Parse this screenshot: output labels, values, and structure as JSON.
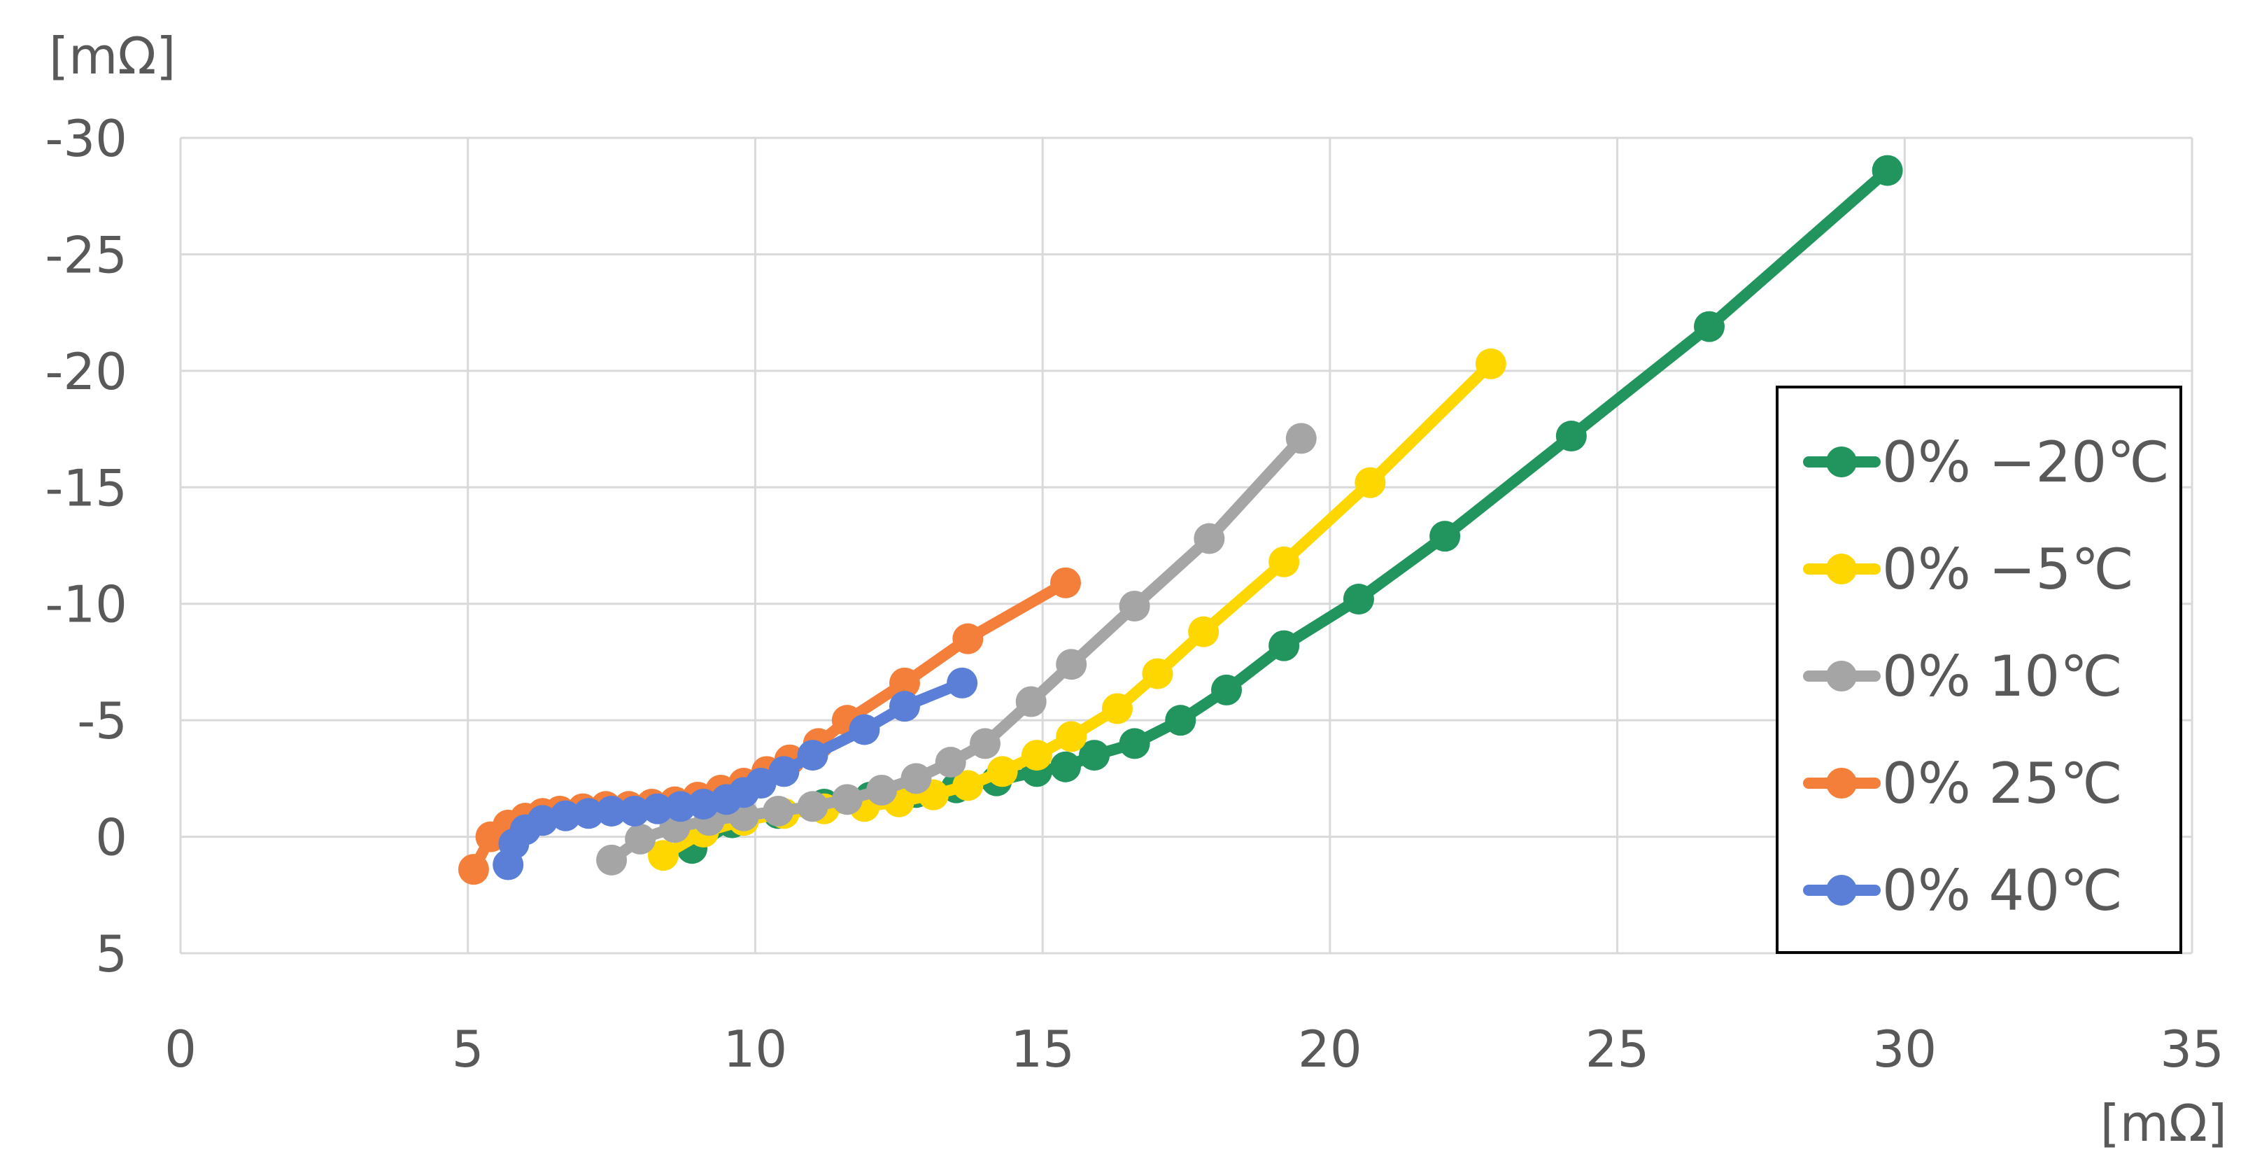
{
  "chart_data": {
    "type": "line",
    "title": "",
    "xlabel": "[mΩ]",
    "ylabel": "[mΩ]",
    "xlim": [
      0,
      35
    ],
    "ylim": [
      5,
      -30
    ],
    "y_inverted": true,
    "x_ticks": [
      "0",
      "5",
      "10",
      "15",
      "20",
      "25",
      "30",
      "35"
    ],
    "y_ticks": [
      "-30",
      "-25",
      "-20",
      "-15",
      "-10",
      "-5",
      "0",
      "5"
    ],
    "grid": true,
    "legend_position": "right",
    "series": [
      {
        "name": "0% −20℃",
        "color": "#22945e",
        "x": [
          8.9,
          9.6,
          10.4,
          11.2,
          12.0,
          12.8,
          13.5,
          14.2,
          14.9,
          15.4,
          15.9,
          16.6,
          17.4,
          18.2,
          19.2,
          20.5,
          22.0,
          24.2,
          26.6,
          29.7
        ],
        "y": [
          0.5,
          -0.6,
          -1.0,
          -1.4,
          -1.7,
          -1.9,
          -2.1,
          -2.4,
          -2.8,
          -3.0,
          -3.5,
          -4.0,
          -5.0,
          -6.3,
          -8.2,
          -10.2,
          -12.9,
          -17.2,
          -21.9,
          -28.6
        ]
      },
      {
        "name": "0% −5℃",
        "color": "#ffd700",
        "x": [
          8.4,
          9.1,
          9.8,
          10.5,
          11.2,
          11.9,
          12.5,
          13.1,
          13.7,
          14.3,
          14.9,
          15.5,
          16.3,
          17.0,
          17.8,
          19.2,
          20.7,
          22.8
        ],
        "y": [
          0.8,
          -0.2,
          -0.7,
          -1.0,
          -1.2,
          -1.3,
          -1.5,
          -1.8,
          -2.2,
          -2.8,
          -3.5,
          -4.3,
          -5.5,
          -7.0,
          -8.8,
          -11.8,
          -15.2,
          -20.3
        ],
        "marker_indices": [
          0,
          1,
          2,
          3,
          4,
          5,
          6,
          7,
          8,
          9,
          10,
          11,
          12,
          13,
          14,
          15,
          16,
          17
        ]
      },
      {
        "name": "0% 10℃",
        "color": "#a5a5a5",
        "x": [
          7.5,
          8.0,
          8.6,
          9.2,
          9.8,
          10.4,
          11.0,
          11.6,
          12.2,
          12.8,
          13.4,
          14.0,
          14.8,
          15.5,
          16.6,
          17.9,
          19.5
        ],
        "y": [
          1.0,
          0.1,
          -0.4,
          -0.7,
          -0.9,
          -1.1,
          -1.3,
          -1.6,
          -2.0,
          -2.5,
          -3.2,
          -4.0,
          -5.8,
          -7.4,
          -9.9,
          -12.8,
          -17.1
        ]
      },
      {
        "name": "0% 25℃",
        "color": "#f47f3a",
        "x": [
          5.1,
          5.4,
          5.7,
          6.0,
          6.3,
          6.6,
          7.0,
          7.4,
          7.8,
          8.2,
          8.6,
          9.0,
          9.4,
          9.8,
          10.2,
          10.6,
          11.1,
          11.6,
          12.6,
          13.7,
          15.4
        ],
        "y": [
          1.4,
          0.0,
          -0.5,
          -0.8,
          -1.0,
          -1.1,
          -1.2,
          -1.3,
          -1.3,
          -1.4,
          -1.5,
          -1.7,
          -2.0,
          -2.3,
          -2.8,
          -3.3,
          -4.0,
          -5.0,
          -6.6,
          -8.5,
          -10.9
        ]
      },
      {
        "name": "0% 40℃",
        "color": "#5b7fd6",
        "x": [
          5.7,
          5.8,
          6.0,
          6.3,
          6.7,
          7.1,
          7.5,
          7.9,
          8.3,
          8.7,
          9.1,
          9.5,
          9.8,
          10.1,
          10.5,
          11.0,
          11.9,
          12.6,
          13.6
        ],
        "y": [
          1.2,
          0.3,
          -0.3,
          -0.7,
          -0.9,
          -1.0,
          -1.1,
          -1.1,
          -1.2,
          -1.3,
          -1.4,
          -1.6,
          -1.9,
          -2.3,
          -2.8,
          -3.5,
          -4.6,
          -5.6,
          -6.6
        ]
      }
    ]
  }
}
